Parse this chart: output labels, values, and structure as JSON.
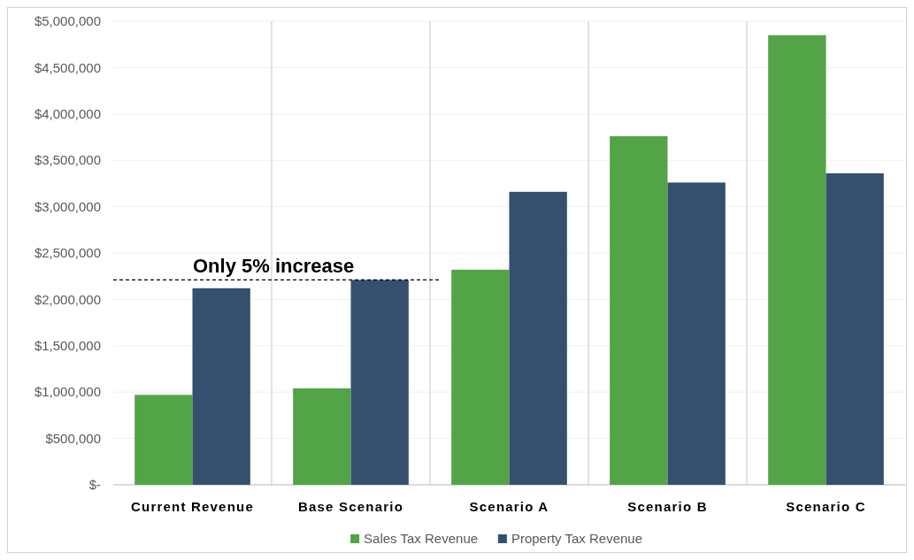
{
  "chart_data": {
    "type": "bar",
    "categories": [
      "Current Revenue",
      "Base Scenario",
      "Scenario A",
      "Scenario B",
      "Scenario C"
    ],
    "series": [
      {
        "name": "Sales Tax Revenue",
        "color": "#52a447",
        "values": [
          970000,
          1040000,
          2320000,
          3760000,
          4850000
        ]
      },
      {
        "name": "Property Tax Revenue",
        "color": "#34506e",
        "values": [
          2120000,
          2210000,
          3160000,
          3260000,
          3360000
        ]
      }
    ],
    "ylim": [
      0,
      5000000
    ],
    "yticks": [
      {
        "value": 0,
        "label": "$-"
      },
      {
        "value": 500000,
        "label": "$500,000"
      },
      {
        "value": 1000000,
        "label": "$1,000,000"
      },
      {
        "value": 1500000,
        "label": "$1,500,000"
      },
      {
        "value": 2000000,
        "label": "$2,000,000"
      },
      {
        "value": 2500000,
        "label": "$2,500,000"
      },
      {
        "value": 3000000,
        "label": "$3,000,000"
      },
      {
        "value": 3500000,
        "label": "$3,500,000"
      },
      {
        "value": 4000000,
        "label": "$4,000,000"
      },
      {
        "value": 4500000,
        "label": "$4,500,000"
      },
      {
        "value": 5000000,
        "label": "$5,000,000"
      }
    ],
    "ref_lines": [
      {
        "axis": "y",
        "value": 2210000,
        "label": "Only 5% increase",
        "line_style": "dashed",
        "color": "#000000"
      }
    ],
    "grid": true,
    "legend": "bottom"
  }
}
